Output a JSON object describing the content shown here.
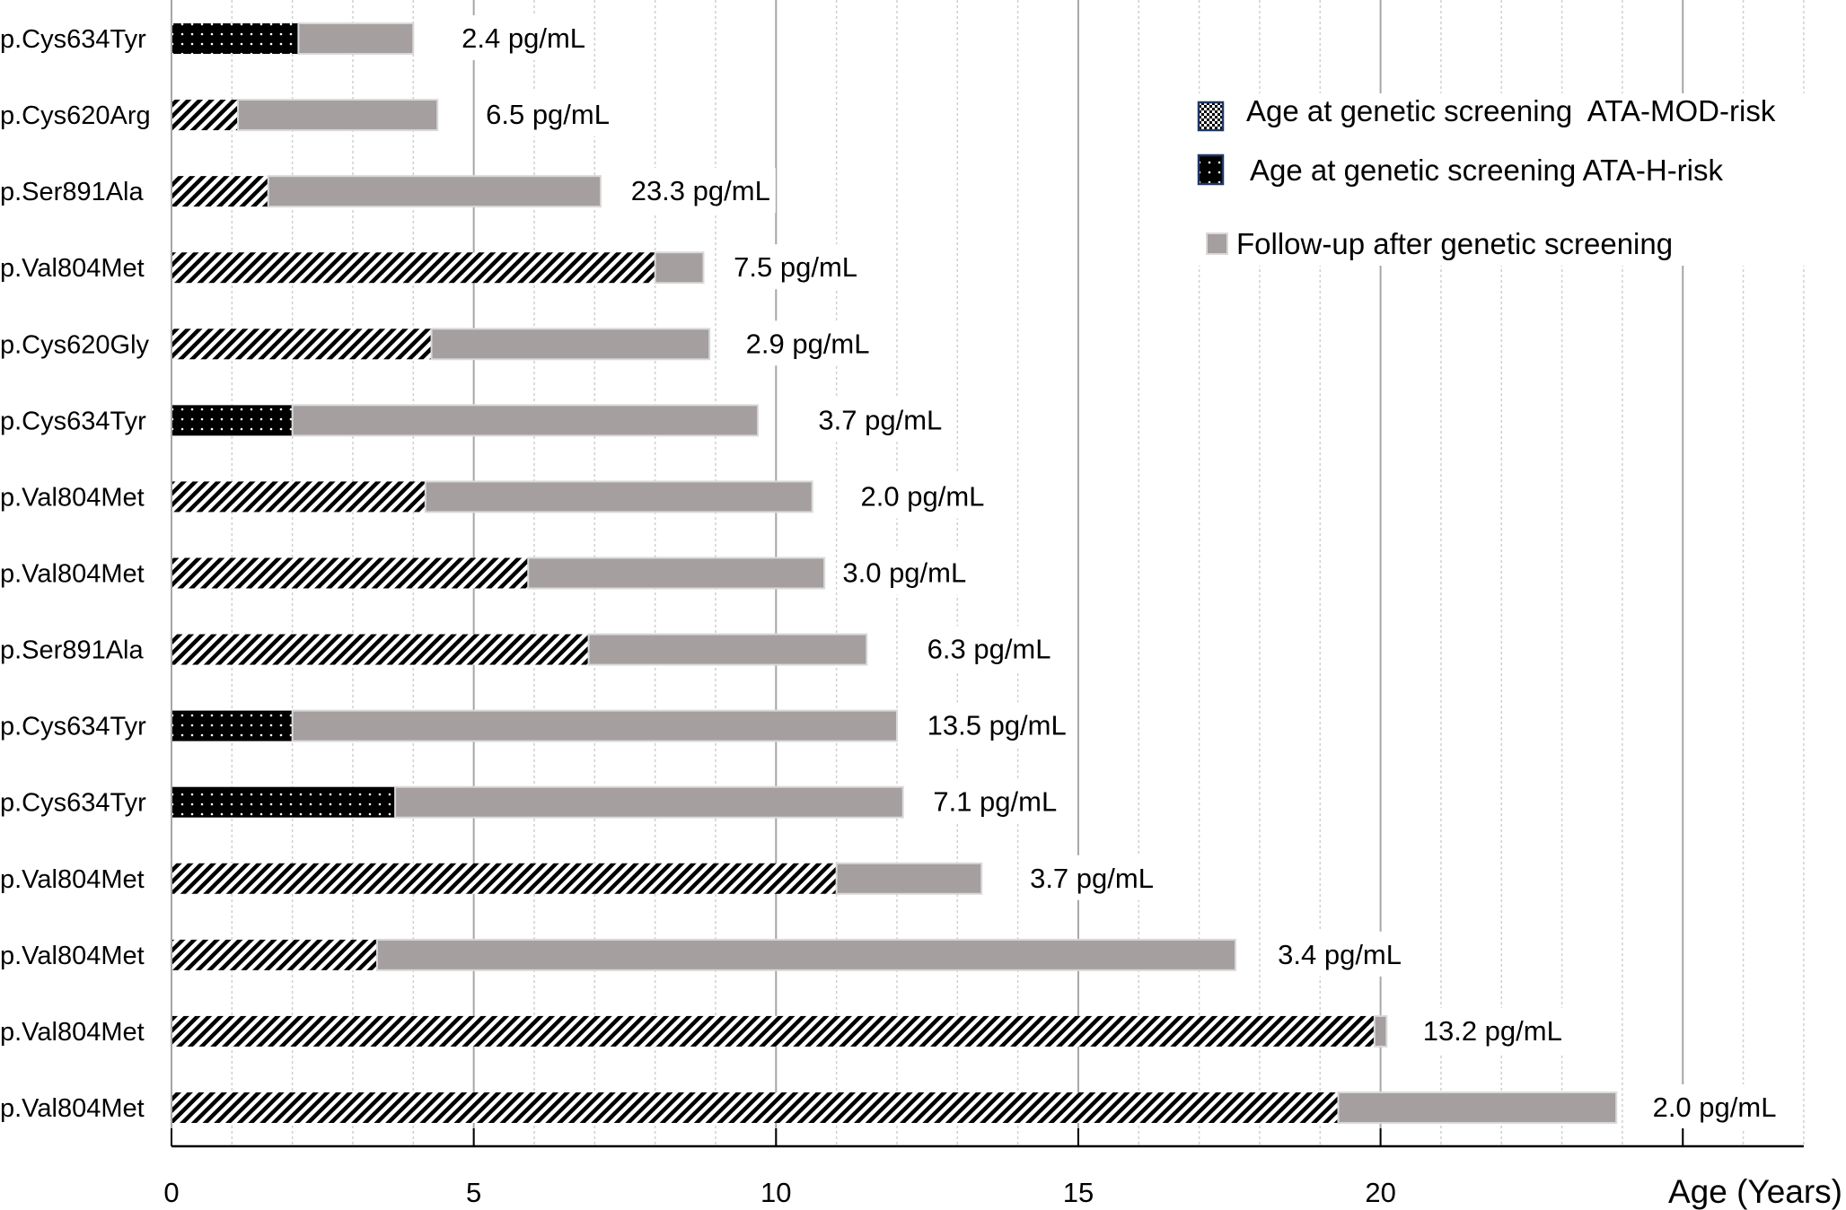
{
  "chart_data": {
    "type": "bar",
    "subtype": "horizontal-stacked",
    "title": "",
    "xlabel": "Age (Years)",
    "ylabel": "",
    "xlim": [
      0,
      27
    ],
    "x_ticks": [
      0,
      5,
      10,
      15,
      20
    ],
    "x_tick_labels": [
      "0",
      "5",
      "10",
      "15",
      "20"
    ],
    "major_grid_step": 5,
    "minor_grid_step": 1,
    "grid": true,
    "legend_position": "top-right",
    "legend": [
      {
        "key": "mod",
        "label": "Age at genetic screening  ATA-MOD-risk",
        "pattern": "diagonal-hatch"
      },
      {
        "key": "high",
        "label": "Age at genetic screening ATA-H-risk",
        "pattern": "black-dots"
      },
      {
        "key": "followup",
        "label": "Follow-up after genetic screening",
        "pattern": "solid-gray"
      }
    ],
    "colors": {
      "followup_fill": "#a59f9f",
      "followup_edge": "#d9d9d9",
      "pattern_ink": "#000000",
      "legend_edge": "#1f3864",
      "major_grid": "#a6a6a6",
      "minor_grid": "#d0d0d0",
      "axis": "#000000"
    },
    "categories": [
      "p.Cys634Tyr",
      "p.Cys620Arg",
      "p.Ser891Ala",
      "p.Val804Met",
      "p.Cys620Gly",
      "p.Cys634Tyr",
      "p.Val804Met",
      "p.Val804Met",
      "p.Ser891Ala",
      "p.Cys634Tyr",
      "p.Cys634Tyr",
      "p.Val804Met",
      "p.Val804Met",
      "p.Val804Met",
      "p.Val804Met"
    ],
    "series": [
      {
        "name": "Age at genetic screening",
        "risk": [
          "high",
          "mod",
          "mod",
          "mod",
          "mod",
          "high",
          "mod",
          "mod",
          "mod",
          "high",
          "high",
          "mod",
          "mod",
          "mod",
          "mod"
        ],
        "values": [
          2.1,
          1.1,
          1.6,
          8.0,
          4.3,
          2.0,
          4.2,
          5.9,
          6.9,
          2.0,
          3.7,
          11.0,
          3.4,
          19.9,
          19.3
        ]
      },
      {
        "name": "Follow-up after genetic screening",
        "values": [
          1.9,
          3.3,
          5.5,
          0.8,
          4.6,
          7.7,
          6.4,
          4.9,
          4.6,
          10.0,
          8.4,
          2.4,
          14.2,
          0.2,
          4.6
        ]
      }
    ],
    "end_age": [
      4.0,
      4.4,
      7.1,
      8.8,
      8.9,
      9.7,
      10.6,
      10.8,
      11.5,
      12.0,
      12.1,
      13.4,
      17.6,
      20.1,
      23.9
    ],
    "annotations": [
      "2.4 pg/mL",
      "6.5 pg/mL",
      "23.3 pg/mL",
      "7.5 pg/mL",
      "2.9 pg/mL",
      "3.7 pg/mL",
      "2.0 pg/mL",
      "3.0 pg/mL",
      "6.3 pg/mL",
      "13.5 pg/mL",
      "7.1 pg/mL",
      "3.7 pg/mL",
      "3.4 pg/mL",
      "13.2 pg/mL",
      "2.0 pg/mL"
    ],
    "annotation_offsets_years": [
      0.8,
      0.8,
      0.5,
      0.5,
      0.6,
      1.0,
      0.8,
      0.3,
      1.0,
      0.5,
      0.5,
      0.8,
      0.7,
      0.6,
      0.6
    ]
  }
}
